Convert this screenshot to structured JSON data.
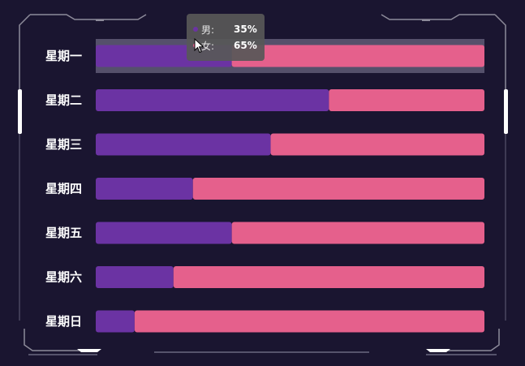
{
  "colors": {
    "background": "#1a1530",
    "male": "#6b33a3",
    "female": "#e5608c",
    "highlight": "#55506b",
    "frame": "#9a98a6"
  },
  "tooltip": {
    "rows": [
      {
        "name": "男:",
        "value": "35%"
      },
      {
        "name": "女:",
        "value": "65%"
      }
    ]
  },
  "chart_data": {
    "type": "bar",
    "orientation": "horizontal",
    "stacked": true,
    "normalized_percent": true,
    "categories": [
      "星期一",
      "星期二",
      "星期三",
      "星期四",
      "星期五",
      "星期六",
      "星期日"
    ],
    "series": [
      {
        "name": "男",
        "values": [
          35,
          60,
          45,
          25,
          35,
          20,
          10
        ]
      },
      {
        "name": "女",
        "values": [
          65,
          40,
          55,
          75,
          65,
          80,
          90
        ]
      }
    ],
    "xlim": [
      0,
      100
    ],
    "highlighted_category": "星期一",
    "grid": false
  }
}
